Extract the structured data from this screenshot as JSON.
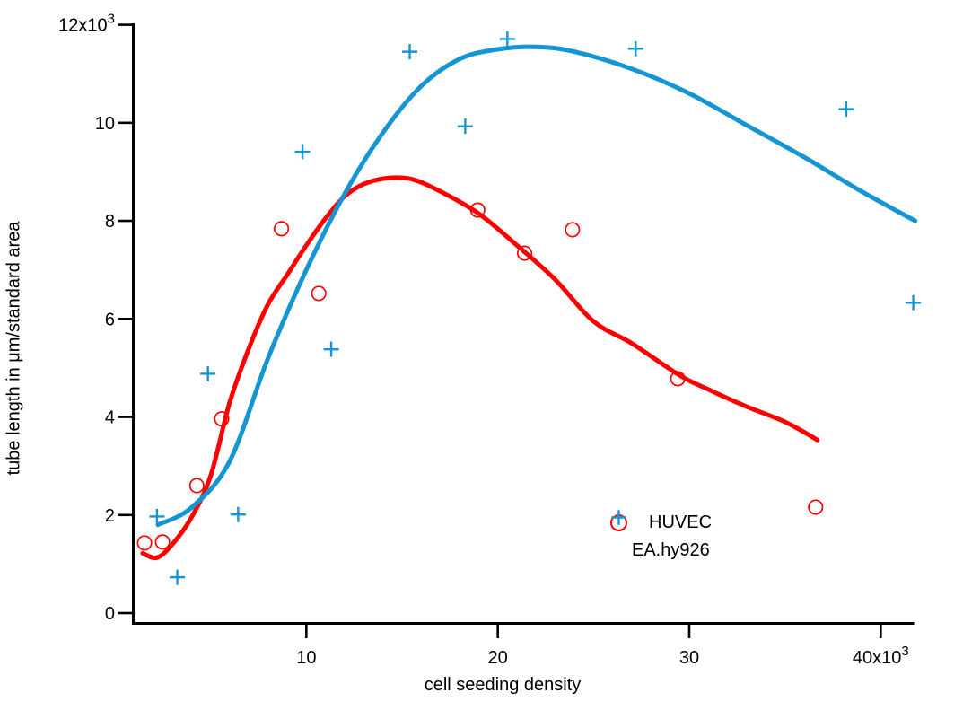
{
  "chart_data": {
    "type": "scatter",
    "title": "",
    "xlabel": "cell seeding density",
    "ylabel": "tube length in μm/standard area",
    "units_note": "both axes displayed in thousands (x10³)",
    "xlim": [
      1,
      41.8
    ],
    "ylim": [
      0,
      12
    ],
    "x_ticks": [
      10,
      20,
      30,
      40
    ],
    "y_ticks": [
      0,
      2,
      4,
      6,
      8,
      10,
      12
    ],
    "tick_suffix": {
      "text": "x10",
      "exponent": "3"
    },
    "grid": false,
    "axis_color": "#000000",
    "legend_position": "inside-lower-right",
    "series": [
      {
        "name": "HUVEC",
        "marker": "circle",
        "color": "#FF0000",
        "points": [
          [
            1.55,
            1.43
          ],
          [
            2.49,
            1.45
          ],
          [
            4.28,
            2.6
          ],
          [
            5.58,
            3.96
          ],
          [
            8.7,
            7.84
          ],
          [
            10.65,
            6.52
          ],
          [
            18.95,
            8.22
          ],
          [
            21.4,
            7.34
          ],
          [
            23.9,
            7.82
          ],
          [
            29.4,
            4.78
          ],
          [
            36.6,
            2.16
          ]
        ],
        "fit": [
          [
            1.45,
            1.22
          ],
          [
            2.2,
            1.13
          ],
          [
            3,
            1.4
          ],
          [
            4,
            1.95
          ],
          [
            5,
            2.8
          ],
          [
            6,
            4.3
          ],
          [
            7,
            5.4
          ],
          [
            8,
            6.3
          ],
          [
            9,
            6.9
          ],
          [
            10,
            7.5
          ],
          [
            11,
            8.05
          ],
          [
            12,
            8.5
          ],
          [
            13,
            8.75
          ],
          [
            14.2,
            8.87
          ],
          [
            15.5,
            8.85
          ],
          [
            17,
            8.6
          ],
          [
            19,
            8.15
          ],
          [
            21,
            7.5
          ],
          [
            23,
            6.8
          ],
          [
            25,
            5.95
          ],
          [
            27,
            5.5
          ],
          [
            29.5,
            4.85
          ],
          [
            31,
            4.56
          ],
          [
            33,
            4.21
          ],
          [
            35,
            3.9
          ],
          [
            36.7,
            3.53
          ]
        ]
      },
      {
        "name": "EA.hy926",
        "marker": "plus",
        "color": "#1695D3",
        "points": [
          [
            2.2,
            1.97
          ],
          [
            3.26,
            0.73
          ],
          [
            4.86,
            4.88
          ],
          [
            6.44,
            2.01
          ],
          [
            9.8,
            9.41
          ],
          [
            11.3,
            5.38
          ],
          [
            15.4,
            11.45
          ],
          [
            18.3,
            9.93
          ],
          [
            20.5,
            11.71
          ],
          [
            27.2,
            11.51
          ],
          [
            38.2,
            10.28
          ],
          [
            41.7,
            6.33
          ]
        ],
        "fit": [
          [
            2.25,
            1.8
          ],
          [
            4,
            2.15
          ],
          [
            6,
            3.1
          ],
          [
            8,
            5.2
          ],
          [
            10,
            7.0
          ],
          [
            12,
            8.55
          ],
          [
            14,
            9.8
          ],
          [
            16,
            10.75
          ],
          [
            18,
            11.3
          ],
          [
            20,
            11.5
          ],
          [
            22,
            11.55
          ],
          [
            24,
            11.45
          ],
          [
            27,
            11.1
          ],
          [
            30,
            10.6
          ],
          [
            33,
            9.95
          ],
          [
            36,
            9.3
          ],
          [
            39,
            8.6
          ],
          [
            41.8,
            8.0
          ]
        ]
      }
    ]
  }
}
